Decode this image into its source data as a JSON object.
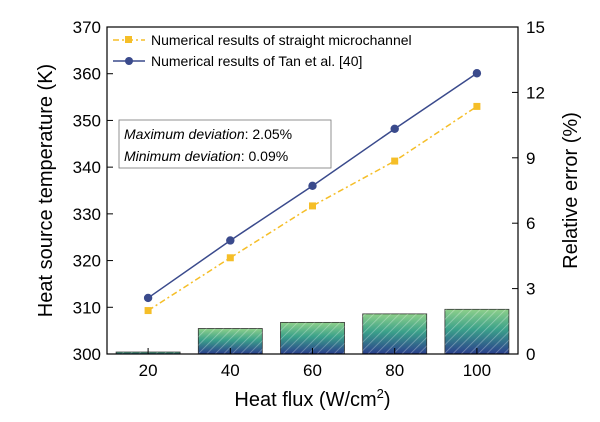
{
  "chart_data": {
    "type": "line+bar",
    "x": [
      20,
      40,
      60,
      80,
      100
    ],
    "xlabel_prefix": "Heat flux (W/cm",
    "xlabel_sup": "2",
    "xlabel_suffix": ")",
    "ylabel_left": "Heat source temperature (K)",
    "ylabel_right": "Relative error (%)",
    "xlim": [
      10,
      110
    ],
    "ylim_left": [
      300,
      370
    ],
    "ylim_right": [
      0,
      15
    ],
    "xticks": [
      "20",
      "40",
      "60",
      "80",
      "100"
    ],
    "yticks_left": [
      "300",
      "310",
      "320",
      "330",
      "340",
      "350",
      "360",
      "370"
    ],
    "yticks_right": [
      "0",
      "3",
      "6",
      "9",
      "12",
      "15"
    ],
    "series": [
      {
        "name": "Numerical results of straight microchannel",
        "axis": "left",
        "style": "dash-dot",
        "marker": "square",
        "color": "#F5BE28",
        "values": [
          309.3,
          320.6,
          331.7,
          341.3,
          353.0
        ]
      },
      {
        "name": "Numerical results of Tan et al. [40]",
        "axis": "left",
        "style": "solid",
        "marker": "circle",
        "color": "#3A4A8C",
        "values": [
          312.0,
          324.3,
          336.0,
          348.2,
          360.1
        ]
      },
      {
        "name": "Relative error",
        "axis": "right",
        "type": "bar",
        "values": [
          0.09,
          1.17,
          1.45,
          1.84,
          2.05
        ]
      }
    ],
    "annotation": {
      "max_label": "Maximum deviation",
      "max_value": ": 2.05%",
      "min_label": "Minimum deviation",
      "min_value": ": 0.09%"
    },
    "legend_position": "top-left"
  }
}
